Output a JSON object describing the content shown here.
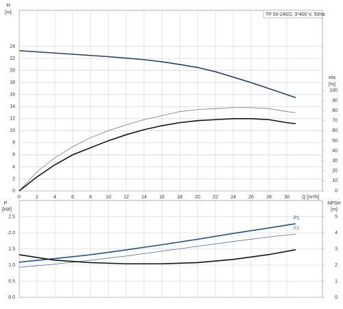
{
  "chart_data": [
    {
      "type": "line",
      "title": "TP 50-240/2, 3*400 V, 50Hz",
      "ylabel": "H",
      "yunit": "[m]",
      "y2label": "eta",
      "y2unit": "[%]",
      "xlabel": "Q [m³/h]",
      "x": [
        0,
        2,
        4,
        6,
        8,
        10,
        12,
        14,
        16,
        18,
        20,
        22,
        24,
        26,
        28,
        30,
        31
      ],
      "xlim": [
        0,
        34
      ],
      "xticks": [
        0,
        2,
        4,
        6,
        8,
        10,
        12,
        14,
        16,
        18,
        20,
        22,
        24,
        26,
        28,
        30
      ],
      "ylim": [
        0,
        30
      ],
      "yticks": [
        0,
        2,
        4,
        6,
        8,
        10,
        12,
        14,
        16,
        18,
        20,
        22,
        24
      ],
      "y2lim": [
        0,
        180
      ],
      "y2ticks": [
        0,
        10,
        20,
        30,
        40,
        50,
        60,
        70,
        80,
        90,
        100
      ],
      "grid": true,
      "xticklabels": true,
      "series": [
        {
          "color": "#1f3f6e",
          "width": 1.6,
          "values": [
            23.3,
            23.1,
            22.9,
            22.7,
            22.5,
            22.3,
            22.05,
            21.8,
            21.45,
            21.0,
            20.5,
            19.8,
            18.9,
            18.0,
            17.0,
            16.0,
            15.5
          ]
        },
        {
          "color": "#777777",
          "width": 0.8,
          "axis": "y2",
          "values": [
            0,
            19,
            33,
            44,
            53,
            60,
            66,
            71,
            75,
            79,
            81,
            82,
            83,
            83,
            82,
            79,
            78
          ]
        },
        {
          "color": "#111111",
          "width": 1.6,
          "axis": "y2",
          "values": [
            0,
            14,
            26,
            36,
            43,
            50,
            56,
            61,
            65,
            68,
            70,
            71,
            72,
            72,
            71,
            68,
            67
          ]
        }
      ]
    },
    {
      "type": "line",
      "ylabel": "P",
      "yunit": "[kW]",
      "y2label": "NPSH",
      "y2unit": "[m]",
      "x": [
        0,
        4,
        8,
        12,
        16,
        20,
        24,
        28,
        31
      ],
      "xlim": [
        0,
        34
      ],
      "xticks": [
        0,
        2,
        4,
        6,
        8,
        10,
        12,
        14,
        16,
        18,
        20,
        22,
        24,
        26,
        28,
        30
      ],
      "ylim": [
        0,
        3
      ],
      "yticks": [
        {
          "value": 0,
          "label": "0.0"
        },
        0.5,
        {
          "value": 1,
          "label": "1.0"
        },
        1.5,
        {
          "value": 2,
          "label": "2.0"
        },
        2.5
      ],
      "y2lim": [
        0,
        6
      ],
      "y2ticks": [
        0,
        1,
        2,
        3,
        4,
        5
      ],
      "grid": true,
      "xticklabels": false,
      "series": [
        {
          "name": "P1",
          "color": "#1f4f8a",
          "width": 1.6,
          "values": [
            1.09,
            1.2,
            1.32,
            1.47,
            1.63,
            1.8,
            1.98,
            2.15,
            2.28
          ]
        },
        {
          "name": "P2",
          "color": "#4a6f9a",
          "width": 0.8,
          "values": [
            0.93,
            1.03,
            1.15,
            1.28,
            1.43,
            1.58,
            1.73,
            1.87,
            1.96
          ]
        },
        {
          "color": "#111111",
          "width": 1.6,
          "axis": "y2",
          "values": [
            2.64,
            2.3,
            2.15,
            2.08,
            2.08,
            2.15,
            2.35,
            2.65,
            2.95
          ]
        }
      ]
    }
  ]
}
